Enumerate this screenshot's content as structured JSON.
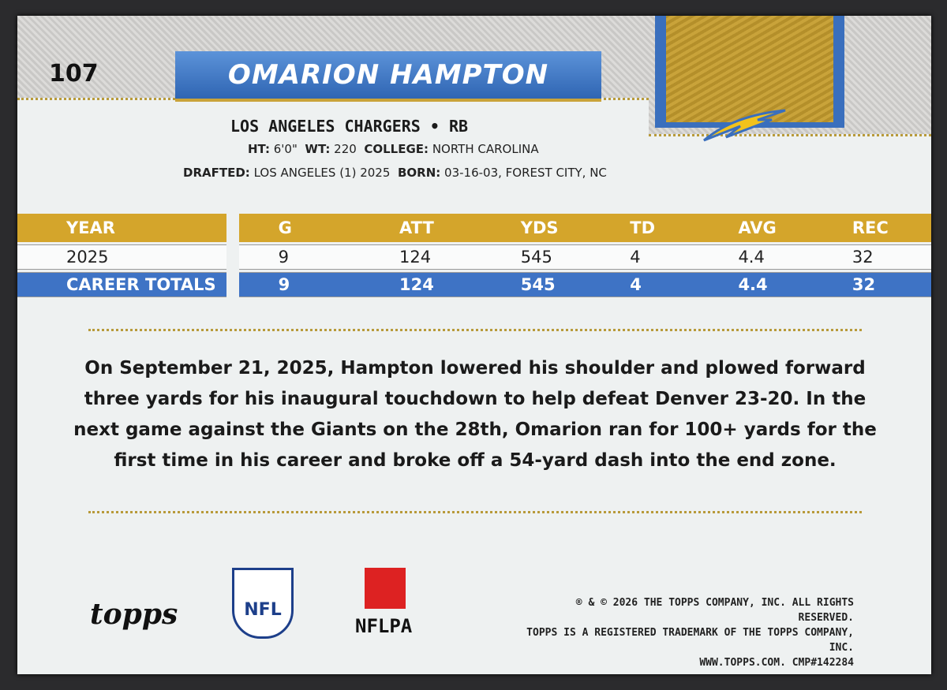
{
  "card": {
    "number": "107",
    "name": "OMARION HAMPTON",
    "team": "LOS ANGELES CHARGERS • RB",
    "bio": [
      {
        "label": "HT:",
        "value": "6'0\""
      },
      {
        "label": "WT:",
        "value": "220"
      },
      {
        "label": "COLLEGE:",
        "value": "NORTH CAROLINA"
      },
      {
        "label": "DRAFTED:",
        "value": "LOS ANGELES (1) 2025"
      },
      {
        "label": "BORN:",
        "value": "03-16-03, FOREST CITY, NC"
      }
    ],
    "stats": {
      "headers": [
        "YEAR",
        "G",
        "ATT",
        "YDS",
        "TD",
        "AVG",
        "REC"
      ],
      "rows": [
        [
          "2025",
          "9",
          "124",
          "545",
          "4",
          "4.4",
          "32"
        ],
        [
          "CAREER TOTALS",
          "9",
          "124",
          "545",
          "4",
          "4.4",
          "32"
        ]
      ]
    },
    "paragraph": "On September 21, 2025, Hampton lowered his shoulder and plowed forward three yards for his inaugural touchdown to help defeat Denver 23-20. In the next game against the Giants on the 28th, Omarion ran for 100+ yards for the first time in his career and broke off a 54-yard dash into the end zone.",
    "logos": [
      "topps",
      "NFL",
      "NFLPA"
    ],
    "copyright": [
      "® & © 2026 THE TOPPS COMPANY, INC. ALL RIGHTS RESERVED.",
      "TOPPS IS A REGISTERED TRADEMARK OF THE TOPPS COMPANY, INC.",
      "WWW.TOPPS.COM. CMP#142284"
    ]
  }
}
